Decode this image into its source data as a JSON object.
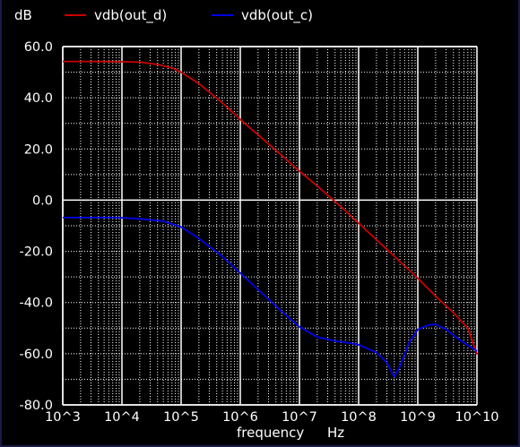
{
  "chart_data": {
    "type": "line",
    "ylabel": "dB",
    "xlabel": "frequency",
    "xunit": "Hz",
    "x_scale": "log",
    "xlim": [
      1000,
      10000000000
    ],
    "ylim": [
      -80,
      60
    ],
    "x_ticks": [
      "10^3",
      "10^4",
      "10^5",
      "10^6",
      "10^7",
      "10^8",
      "10^9",
      "10^10"
    ],
    "y_ticks": [
      "60.0",
      "40.0",
      "20.0",
      "0.0",
      "-20.0",
      "-40.0",
      "-60.0",
      "-80.0"
    ],
    "grid": true,
    "legend_position": "top",
    "series": [
      {
        "name": "vdb(out_d)",
        "color": "#cc0000",
        "points": [
          [
            1000,
            54.2
          ],
          [
            3000,
            54.2
          ],
          [
            10000,
            54.1
          ],
          [
            20000,
            53.9
          ],
          [
            40000,
            53.0
          ],
          [
            70000,
            51.7
          ],
          [
            100000,
            50.0
          ],
          [
            200000,
            45.5
          ],
          [
            500000,
            38.0
          ],
          [
            1000000,
            31.5
          ],
          [
            2000000,
            25.5
          ],
          [
            5000000,
            17.5
          ],
          [
            10000000,
            11.3
          ],
          [
            20000000,
            5.5
          ],
          [
            50000000,
            -2.5
          ],
          [
            100000000,
            -9.0
          ],
          [
            200000000,
            -15.5
          ],
          [
            500000000,
            -24.0
          ],
          [
            1000000000,
            -30.5
          ],
          [
            2000000000,
            -37.5
          ],
          [
            4000000000,
            -44.0
          ],
          [
            7000000000,
            -50.0
          ],
          [
            10000000000,
            -60.3
          ]
        ]
      },
      {
        "name": "vdb(out_c)",
        "color": "#0000ee",
        "points": [
          [
            1000,
            -6.8
          ],
          [
            5000,
            -6.8
          ],
          [
            10000,
            -6.9
          ],
          [
            20000,
            -7.3
          ],
          [
            50000,
            -8.2
          ],
          [
            100000,
            -10.5
          ],
          [
            200000,
            -15.0
          ],
          [
            500000,
            -22.0
          ],
          [
            1000000,
            -28.5
          ],
          [
            2000000,
            -35.0
          ],
          [
            5000000,
            -43.5
          ],
          [
            10000000,
            -49.5
          ],
          [
            20000000,
            -53.5
          ],
          [
            40000000,
            -55.0
          ],
          [
            70000000,
            -55.8
          ],
          [
            100000000,
            -56.5
          ],
          [
            200000000,
            -59.5
          ],
          [
            300000000,
            -63.5
          ],
          [
            400000000,
            -69.0
          ],
          [
            500000000,
            -65.0
          ],
          [
            700000000,
            -56.0
          ],
          [
            1000000000,
            -50.5
          ],
          [
            1500000000,
            -48.8
          ],
          [
            2000000000,
            -48.5
          ],
          [
            3000000000,
            -50.5
          ],
          [
            5000000000,
            -54.5
          ],
          [
            10000000000,
            -59.0
          ]
        ]
      }
    ]
  }
}
